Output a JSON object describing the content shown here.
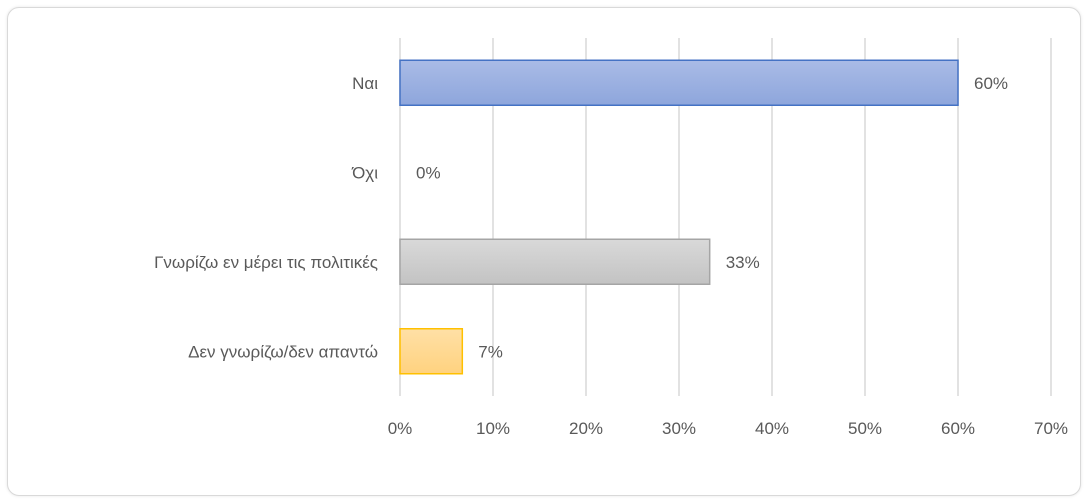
{
  "chart_data": {
    "type": "bar",
    "orientation": "horizontal",
    "title": "",
    "xlabel": "",
    "ylabel": "",
    "categories": [
      "Ναι",
      "Όχι",
      "Γνωρίζω εν μέρει τις πολιτικές",
      "Δεν γνωρίζω/δεν απαντώ"
    ],
    "values": [
      60,
      0,
      33.3,
      6.7
    ],
    "data_labels": [
      "60%",
      "0%",
      "33%",
      "7%"
    ],
    "xlim": [
      0,
      70
    ],
    "x_ticks": [
      0,
      10,
      20,
      30,
      40,
      50,
      60,
      70
    ],
    "x_tick_labels": [
      "0%",
      "10%",
      "20%",
      "30%",
      "40%",
      "50%",
      "60%",
      "70%"
    ],
    "grid": true,
    "legend": "none",
    "bar_colors": [
      {
        "top": "#a9bbe6",
        "bottom": "#8ea6dc",
        "stroke": "#4472c4"
      },
      {
        "top": "#a9bbe6",
        "bottom": "#8ea6dc",
        "stroke": "#4472c4"
      },
      {
        "top": "#d9d9d9",
        "bottom": "#c3c3c3",
        "stroke": "#a5a5a5"
      },
      {
        "top": "#ffe0a6",
        "bottom": "#ffd27f",
        "stroke": "#ffc000"
      }
    ],
    "gridline_color": "#d9d9d9",
    "text_color": "#595959"
  }
}
